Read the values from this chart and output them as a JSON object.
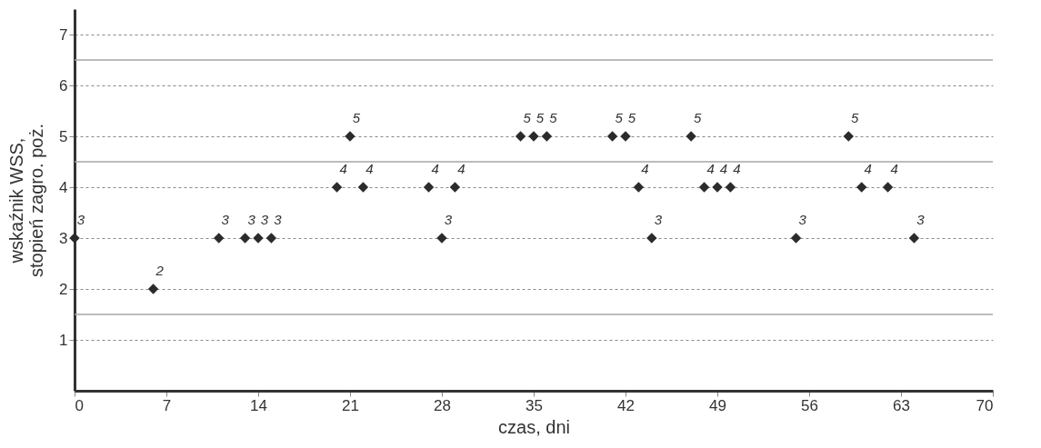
{
  "chart_data": {
    "type": "scatter",
    "xlabel": "czas, dni",
    "ylabel": "wskaźnik WSS,\nstopień zagro. poż.",
    "x": [
      0,
      6,
      11,
      13,
      14,
      15,
      20,
      21,
      22,
      27,
      28,
      29,
      34,
      35,
      36,
      41,
      42,
      43,
      44,
      47,
      48,
      49,
      50,
      55,
      59,
      60,
      62,
      64
    ],
    "series": [
      {
        "color": "#2b2b2b",
        "values": [
          3,
          2,
          3,
          3,
          3,
          3,
          4,
          5,
          4,
          4,
          3,
          4,
          5,
          5,
          5,
          5,
          5,
          4,
          3,
          5,
          4,
          4,
          4,
          3,
          5,
          4,
          4,
          3
        ]
      }
    ],
    "xlim": [
      0,
      70
    ],
    "xticks": [
      0,
      7,
      14,
      21,
      28,
      35,
      42,
      49,
      56,
      63,
      70
    ],
    "ylim": [
      0,
      7.5
    ],
    "yticks": [
      1,
      2,
      3,
      4,
      5,
      6,
      7
    ],
    "grid": "y",
    "marker": "diamond",
    "data_labels": true,
    "ref_lines": [
      {
        "axis": "y",
        "value": 1.5,
        "color": "#a6a6a6",
        "line_style": "solid"
      },
      {
        "axis": "y",
        "value": 4.5,
        "color": "#a6a6a6",
        "line_style": "solid"
      },
      {
        "axis": "y",
        "value": 6.5,
        "color": "#a6a6a6",
        "line_style": "solid"
      }
    ]
  }
}
